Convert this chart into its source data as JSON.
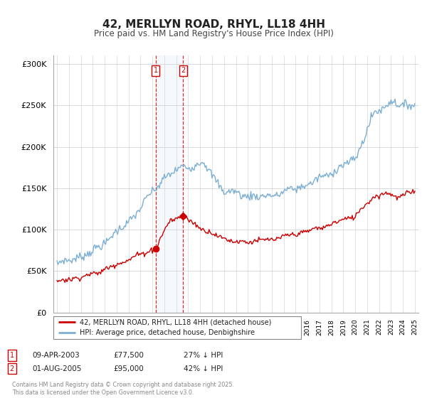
{
  "title": "42, MERLLYN ROAD, RHYL, LL18 4HH",
  "subtitle": "Price paid vs. HM Land Registry's House Price Index (HPI)",
  "legend_line1": "42, MERLLYN ROAD, RHYL, LL18 4HH (detached house)",
  "legend_line2": "HPI: Average price, detached house, Denbighshire",
  "transaction1_date": "09-APR-2003",
  "transaction1_price": 77500,
  "transaction1_label": "27% ↓ HPI",
  "transaction2_date": "01-AUG-2005",
  "transaction2_price": 95000,
  "transaction2_label": "42% ↓ HPI",
  "footer": "Contains HM Land Registry data © Crown copyright and database right 2025.\nThis data is licensed under the Open Government Licence v3.0.",
  "hpi_color": "#7bafd4",
  "price_color": "#cc0000",
  "transaction1_x": 2003.27,
  "transaction2_x": 2005.58,
  "ylim": [
    0,
    310000
  ],
  "xlim_start": 1994.7,
  "xlim_end": 2025.3
}
